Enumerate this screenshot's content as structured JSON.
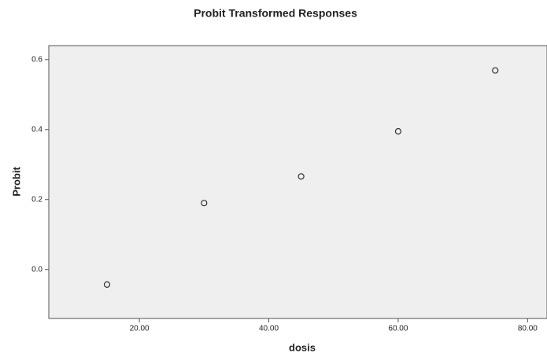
{
  "chart_data": {
    "type": "scatter",
    "title": "Probit Transformed Responses",
    "x_label": "dosis",
    "y_label": "Probit",
    "x": [
      15,
      30,
      45,
      60,
      75
    ],
    "values": [
      -0.043,
      0.19,
      0.266,
      0.395,
      0.569
    ],
    "color": "#333333",
    "xlim": [
      6,
      83
    ],
    "ylim": [
      -0.14,
      0.64
    ],
    "xticks": [
      {
        "value": 20,
        "label": "20.00"
      },
      {
        "value": 40,
        "label": "40.00"
      },
      {
        "value": 60,
        "label": "60.00"
      },
      {
        "value": 80,
        "label": "80.00"
      }
    ],
    "yticks": [
      {
        "value": 0,
        "label": "0.0"
      },
      0.2,
      0.4,
      0.6
    ],
    "grid": false
  }
}
